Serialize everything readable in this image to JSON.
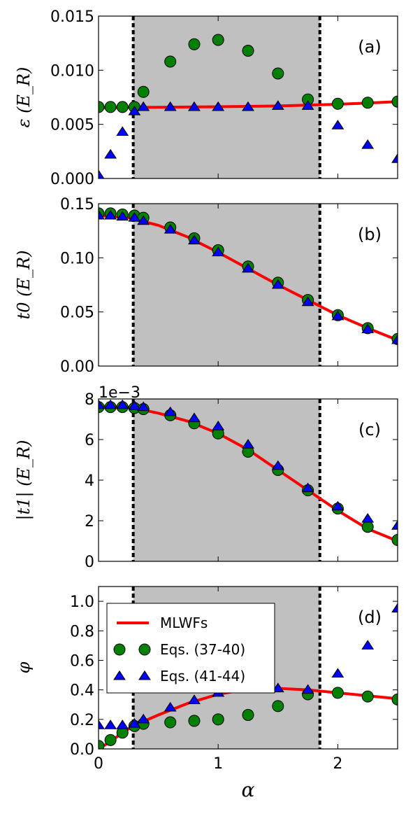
{
  "colors": {
    "mlwf_line": "#ff0000",
    "circle_fill": "#008000",
    "triangle_fill": "#0000ff",
    "shade": "#c0c0c0",
    "vline": "#000000"
  },
  "chart_data": [
    {
      "panel_label": "(a)",
      "type": "scatter",
      "ylabel": "ε (E_R)",
      "xlim": [
        0,
        2.5
      ],
      "ylim": [
        0,
        0.015
      ],
      "yticks": [
        0.0,
        0.005,
        0.01,
        0.015
      ],
      "ytick_labels": [
        "0.000",
        "0.005",
        "0.010",
        "0.015"
      ],
      "offset_text": "",
      "shaded_region": [
        0.29,
        1.85
      ],
      "vlines": [
        0.29,
        1.85
      ],
      "series": [
        {
          "name": "MLWFs",
          "style": "line",
          "x": [
            0,
            0.5,
            1.0,
            1.5,
            2.0,
            2.5
          ],
          "y": [
            0.00655,
            0.00658,
            0.00663,
            0.0067,
            0.00685,
            0.0071
          ]
        },
        {
          "name": "Eqs. (37-40)",
          "style": "circle",
          "x": [
            0,
            0.1,
            0.2,
            0.3,
            0.375,
            0.6,
            0.8,
            1.0,
            1.25,
            1.5,
            1.75,
            2.0,
            2.25,
            2.5
          ],
          "y": [
            0.0066,
            0.0066,
            0.0066,
            0.0066,
            0.008,
            0.0108,
            0.0124,
            0.0128,
            0.0118,
            0.0097,
            0.0073,
            0.0069,
            0.007,
            0.0071
          ]
        },
        {
          "name": "Eqs. (41-44)",
          "style": "triangle",
          "x": [
            0,
            0.1,
            0.2,
            0.3,
            0.375,
            0.6,
            0.8,
            1.0,
            1.25,
            1.5,
            1.75,
            2.0,
            2.25,
            2.5
          ],
          "y": [
            0.0003,
            0.0022,
            0.0043,
            0.0062,
            0.0066,
            0.0066,
            0.0066,
            0.0066,
            0.0066,
            0.0067,
            0.0067,
            0.0049,
            0.0031,
            0.0018
          ]
        }
      ]
    },
    {
      "panel_label": "(b)",
      "type": "scatter",
      "ylabel": "t0 (E_R)",
      "xlim": [
        0,
        2.5
      ],
      "ylim": [
        0,
        0.15
      ],
      "yticks": [
        0.0,
        0.05,
        0.1,
        0.15
      ],
      "ytick_labels": [
        "0.00",
        "0.05",
        "0.10",
        "0.15"
      ],
      "offset_text": "",
      "shaded_region": [
        0.29,
        1.85
      ],
      "vlines": [
        0.29,
        1.85
      ],
      "series": [
        {
          "name": "MLWFs",
          "style": "line",
          "x": [
            0,
            0.25,
            0.5,
            0.75,
            1.0,
            1.25,
            1.5,
            1.75,
            2.0,
            2.25,
            2.5
          ],
          "y": [
            0.139,
            0.137,
            0.13,
            0.119,
            0.105,
            0.09,
            0.075,
            0.061,
            0.047,
            0.035,
            0.024
          ]
        },
        {
          "name": "Eqs. (37-40)",
          "style": "circle",
          "x": [
            0,
            0.1,
            0.2,
            0.3,
            0.375,
            0.6,
            0.8,
            1.0,
            1.25,
            1.5,
            1.75,
            2.0,
            2.25,
            2.5
          ],
          "y": [
            0.141,
            0.141,
            0.14,
            0.139,
            0.137,
            0.128,
            0.118,
            0.107,
            0.092,
            0.077,
            0.061,
            0.047,
            0.035,
            0.025
          ]
        },
        {
          "name": "Eqs. (41-44)",
          "style": "triangle",
          "x": [
            0,
            0.1,
            0.2,
            0.3,
            0.375,
            0.6,
            0.8,
            1.0,
            1.25,
            1.5,
            1.75,
            2.0,
            2.25,
            2.5
          ],
          "y": [
            0.139,
            0.139,
            0.138,
            0.137,
            0.134,
            0.126,
            0.116,
            0.105,
            0.09,
            0.075,
            0.059,
            0.046,
            0.034,
            0.024
          ]
        }
      ]
    },
    {
      "panel_label": "(c)",
      "type": "scatter",
      "ylabel": "|t1| (E_R)",
      "xlim": [
        0,
        2.5
      ],
      "ylim": [
        0,
        8
      ],
      "yticks": [
        0,
        2,
        4,
        6,
        8
      ],
      "ytick_labels": [
        "0",
        "2",
        "4",
        "6",
        "8"
      ],
      "offset_text": "1e−3",
      "shaded_region": [
        0.29,
        1.85
      ],
      "vlines": [
        0.29,
        1.85
      ],
      "series": [
        {
          "name": "MLWFs",
          "style": "line",
          "x": [
            0,
            0.25,
            0.5,
            0.75,
            1.0,
            1.25,
            1.5,
            1.75,
            2.0,
            2.25,
            2.5
          ],
          "y": [
            7.65,
            7.6,
            7.3,
            6.9,
            6.3,
            5.5,
            4.5,
            3.5,
            2.5,
            1.6,
            1.0
          ]
        },
        {
          "name": "Eqs. (37-40)",
          "style": "circle",
          "x": [
            0,
            0.1,
            0.2,
            0.3,
            0.375,
            0.6,
            0.8,
            1.0,
            1.25,
            1.5,
            1.75,
            2.0,
            2.25,
            2.5
          ],
          "y": [
            7.6,
            7.6,
            7.6,
            7.55,
            7.5,
            7.2,
            6.8,
            6.3,
            5.4,
            4.5,
            3.5,
            2.6,
            1.7,
            1.05
          ]
        },
        {
          "name": "Eqs. (41-44)",
          "style": "triangle",
          "x": [
            0,
            0.1,
            0.2,
            0.3,
            0.375,
            0.6,
            0.8,
            1.0,
            1.25,
            1.5,
            1.75,
            2.0,
            2.25,
            2.5
          ],
          "y": [
            7.7,
            7.7,
            7.7,
            7.65,
            7.6,
            7.35,
            7.05,
            6.65,
            5.75,
            4.7,
            3.6,
            2.7,
            2.1,
            1.75
          ]
        }
      ]
    },
    {
      "panel_label": "(d)",
      "type": "scatter",
      "ylabel": "φ",
      "xlabel": "α",
      "xlim": [
        0,
        2.5
      ],
      "ylim": [
        0,
        1.1
      ],
      "yticks": [
        0.0,
        0.2,
        0.4,
        0.6,
        0.8,
        1.0
      ],
      "ytick_labels": [
        "0.0",
        "0.2",
        "0.4",
        "0.6",
        "0.8",
        "1.0"
      ],
      "xticks": [
        0,
        1,
        2
      ],
      "xtick_labels": [
        "0",
        "1",
        "2"
      ],
      "offset_text": "",
      "shaded_region": [
        0.29,
        1.85
      ],
      "vlines": [
        0.29,
        1.85
      ],
      "legend": {
        "placement": "top-left",
        "entries": [
          "MLWFs",
          "Eqs. (37-40)",
          "Eqs. (41-44)"
        ]
      },
      "series": [
        {
          "name": "MLWFs",
          "style": "line",
          "x": [
            0,
            0.1,
            0.2,
            0.3,
            0.5,
            0.75,
            1.0,
            1.25,
            1.5,
            1.75,
            2.0,
            2.25,
            2.5
          ],
          "y": [
            0.0,
            0.05,
            0.11,
            0.16,
            0.23,
            0.31,
            0.37,
            0.405,
            0.41,
            0.4,
            0.38,
            0.36,
            0.34
          ]
        },
        {
          "name": "Eqs. (37-40)",
          "style": "circle",
          "x": [
            0,
            0.1,
            0.2,
            0.3,
            0.375,
            0.6,
            0.8,
            1.0,
            1.25,
            1.5,
            1.75,
            2.0,
            2.25,
            2.5
          ],
          "y": [
            0.02,
            0.06,
            0.11,
            0.155,
            0.17,
            0.18,
            0.19,
            0.2,
            0.23,
            0.29,
            0.37,
            0.38,
            0.355,
            0.335
          ]
        },
        {
          "name": "Eqs. (41-44)",
          "style": "triangle",
          "x": [
            0,
            0.1,
            0.2,
            0.3,
            0.375,
            0.6,
            0.8,
            1.0,
            1.25,
            1.5,
            1.75,
            2.0,
            2.25,
            2.5
          ],
          "y": [
            0.16,
            0.16,
            0.16,
            0.17,
            0.2,
            0.28,
            0.33,
            0.38,
            0.41,
            0.41,
            0.4,
            0.51,
            0.7,
            0.95
          ]
        }
      ]
    }
  ]
}
